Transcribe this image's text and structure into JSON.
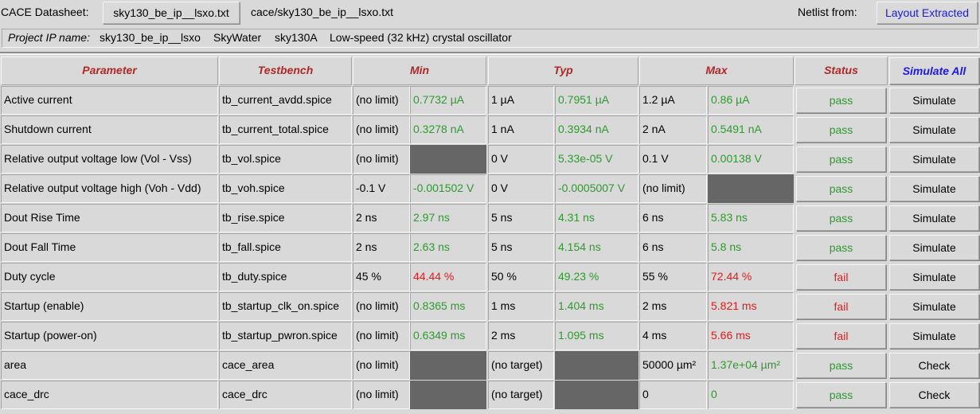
{
  "toolbar": {
    "datasheet_label": "CACE Datasheet:",
    "file_button": "sky130_be_ip__lsxo.txt",
    "file_path": "cace/sky130_be_ip__lsxo.txt",
    "netlist_label": "Netlist from:",
    "netlist_button": "Layout Extracted"
  },
  "project": {
    "label": "Project IP name:",
    "name": "sky130_be_ip__lsxo",
    "foundry": "SkyWater",
    "process": "sky130A",
    "description": "Low-speed (32 kHz) crystal oscillator"
  },
  "headers": {
    "parameter": "Parameter",
    "testbench": "Testbench",
    "min": "Min",
    "typ": "Typ",
    "max": "Max",
    "status": "Status",
    "simulate_all": "Simulate All"
  },
  "colors": {
    "pass": "#2e9a2e",
    "fail": "#e01c1c",
    "header": "#b02828",
    "link": "#1a1ae0"
  },
  "rows": [
    {
      "parameter": "Active current",
      "testbench": "tb_current_avdd.spice",
      "min_spec": "(no limit)",
      "min_val": "0.7732 µA",
      "min_ok": true,
      "typ_spec": "1 µA",
      "typ_val": "0.7951 µA",
      "typ_ok": true,
      "max_spec": "1.2 µA",
      "max_val": "0.86 µA",
      "max_ok": true,
      "status": "pass",
      "action": "Simulate"
    },
    {
      "parameter": "Shutdown current",
      "testbench": "tb_current_total.spice",
      "min_spec": "(no limit)",
      "min_val": "0.3278 nA",
      "min_ok": true,
      "typ_spec": "1 nA",
      "typ_val": "0.3934 nA",
      "typ_ok": true,
      "max_spec": "2 nA",
      "max_val": "0.5491 nA",
      "max_ok": true,
      "status": "pass",
      "action": "Simulate"
    },
    {
      "parameter": "Relative output voltage low (Vol - Vss)",
      "testbench": "tb_vol.spice",
      "min_spec": "(no limit)",
      "min_val": "",
      "min_ok": true,
      "typ_spec": "0 V",
      "typ_val": "5.33e-05 V",
      "typ_ok": true,
      "max_spec": "0.1 V",
      "max_val": "0.00138 V",
      "max_ok": true,
      "status": "pass",
      "action": "Simulate"
    },
    {
      "parameter": "Relative output voltage high (Voh - Vdd)",
      "testbench": "tb_voh.spice",
      "min_spec": "-0.1 V",
      "min_val": "-0.001502 V",
      "min_ok": true,
      "typ_spec": "0 V",
      "typ_val": "-0.0005007 V",
      "typ_ok": true,
      "max_spec": "(no limit)",
      "max_val": "",
      "max_ok": true,
      "status": "pass",
      "action": "Simulate"
    },
    {
      "parameter": "Dout Rise Time",
      "testbench": "tb_rise.spice",
      "min_spec": "2 ns",
      "min_val": "2.97 ns",
      "min_ok": true,
      "typ_spec": "5 ns",
      "typ_val": "4.31 ns",
      "typ_ok": true,
      "max_spec": "6 ns",
      "max_val": "5.83 ns",
      "max_ok": true,
      "status": "pass",
      "action": "Simulate"
    },
    {
      "parameter": "Dout Fall Time",
      "testbench": "tb_fall.spice",
      "min_spec": "2 ns",
      "min_val": "2.63 ns",
      "min_ok": true,
      "typ_spec": "5 ns",
      "typ_val": "4.154 ns",
      "typ_ok": true,
      "max_spec": "6 ns",
      "max_val": "5.8 ns",
      "max_ok": true,
      "status": "pass",
      "action": "Simulate"
    },
    {
      "parameter": "Duty cycle",
      "testbench": "tb_duty.spice",
      "min_spec": "45 %",
      "min_val": "44.44 %",
      "min_ok": false,
      "typ_spec": "50 %",
      "typ_val": "49.23 %",
      "typ_ok": true,
      "max_spec": "55 %",
      "max_val": "72.44 %",
      "max_ok": false,
      "status": "fail",
      "action": "Simulate"
    },
    {
      "parameter": "Startup (enable)",
      "testbench": "tb_startup_clk_on.spice",
      "min_spec": "(no limit)",
      "min_val": "0.8365 ms",
      "min_ok": true,
      "typ_spec": "1 ms",
      "typ_val": "1.404 ms",
      "typ_ok": true,
      "max_spec": "2 ms",
      "max_val": "5.821 ms",
      "max_ok": false,
      "status": "fail",
      "action": "Simulate"
    },
    {
      "parameter": "Startup (power-on)",
      "testbench": "tb_startup_pwron.spice",
      "min_spec": "(no limit)",
      "min_val": "0.6349 ms",
      "min_ok": true,
      "typ_spec": "2 ms",
      "typ_val": "1.095 ms",
      "typ_ok": true,
      "max_spec": "4 ms",
      "max_val": "5.66 ms",
      "max_ok": false,
      "status": "fail",
      "action": "Simulate"
    },
    {
      "parameter": "area",
      "testbench": "cace_area",
      "min_spec": "(no limit)",
      "min_val": "",
      "min_ok": true,
      "typ_spec": "(no target)",
      "typ_val": "",
      "typ_ok": true,
      "max_spec": "50000 µm²",
      "max_val": "1.37e+04 µm²",
      "max_ok": true,
      "status": "pass",
      "action": "Check"
    },
    {
      "parameter": "cace_drc",
      "testbench": "cace_drc",
      "min_spec": "(no limit)",
      "min_val": "",
      "min_ok": true,
      "typ_spec": "(no target)",
      "typ_val": "",
      "typ_ok": true,
      "max_spec": "0",
      "max_val": "0",
      "max_ok": true,
      "status": "pass",
      "action": "Check"
    }
  ]
}
